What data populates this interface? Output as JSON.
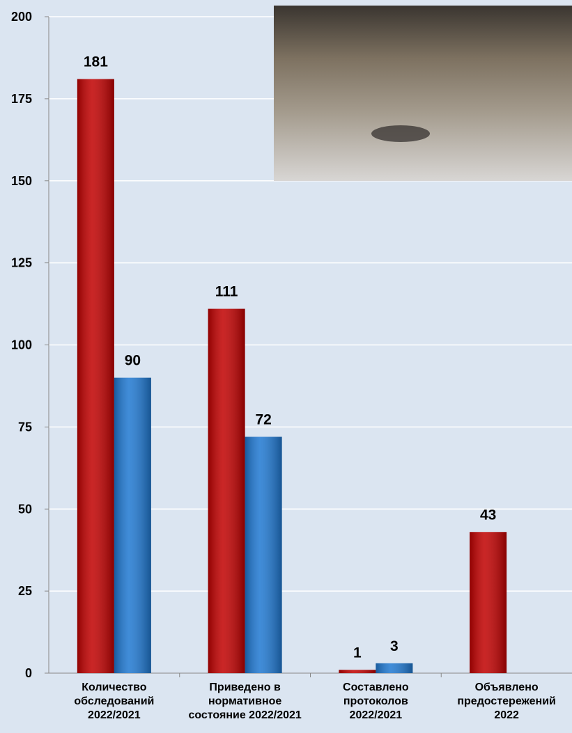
{
  "chart_data": {
    "type": "bar",
    "categories": [
      "Количество\nобследований\n2022/2021",
      "Приведено в\nнормативное\nсостояние 2022/2021",
      "Составлено\nпротоколов\n2022/2021",
      "Объявлено\nпредостережений\n2022"
    ],
    "series": [
      {
        "color": "#c00000",
        "values": [
          181,
          111,
          1,
          43
        ]
      },
      {
        "color": "#1f78d1",
        "values": [
          90,
          72,
          3,
          null
        ]
      }
    ],
    "ylim": [
      0,
      200
    ],
    "yticks": [
      0,
      25,
      50,
      75,
      100,
      125,
      150,
      175,
      200
    ],
    "grid": true
  }
}
